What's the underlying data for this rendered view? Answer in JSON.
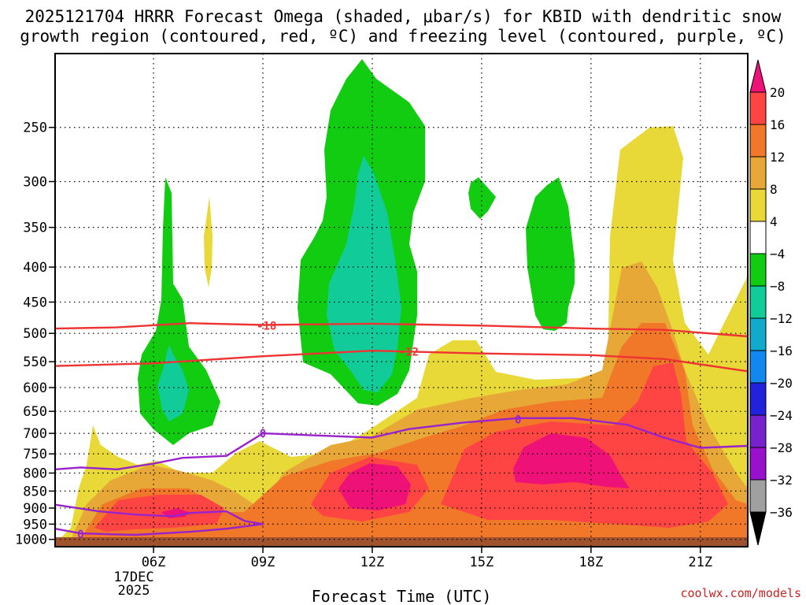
{
  "chart_data": {
    "type": "heatmap",
    "title_line1": "2025121704 HRRR Forecast Omega (shaded, μbar/s) for KBID with dendritic snow",
    "title_line2": "growth region (contoured, red, ºC) and freezing level (contoured, purple, ºC)",
    "xlabel": "Forecast Time (UTC)",
    "ylabel": "",
    "x_range_hours": [
      3.3,
      22.3
    ],
    "y_range_hpa": [
      1025,
      195
    ],
    "x_ticks": [
      {
        "hour": 6,
        "label": "06Z"
      },
      {
        "hour": 9,
        "label": "09Z"
      },
      {
        "hour": 12,
        "label": "12Z"
      },
      {
        "hour": 15,
        "label": "15Z"
      },
      {
        "hour": 18,
        "label": "18Z"
      },
      {
        "hour": 21,
        "label": "21Z"
      }
    ],
    "date_label": [
      "17DEC",
      "2025"
    ],
    "y_ticks": [
      250,
      300,
      350,
      400,
      450,
      500,
      550,
      600,
      650,
      700,
      750,
      800,
      850,
      900,
      950,
      1000
    ],
    "colorbar": {
      "labels": [
        "20",
        "16",
        "12",
        "8",
        "4",
        "−4",
        "−8",
        "−12",
        "−16",
        "−20",
        "−24",
        "−28",
        "−32",
        "−36"
      ],
      "colors": [
        "#ee1177",
        "#ff4444",
        "#f07828",
        "#e8a838",
        "#e8d838",
        "#ffffff",
        "#11cc11",
        "#11cc99",
        "#11aacc",
        "#1188ee",
        "#2222dd",
        "#7722cc",
        "#9911cc",
        "#a0a0a0",
        "#000000"
      ]
    },
    "shaded_regions": [
      {
        "name": "green",
        "value_range": [
          -8,
          -4
        ],
        "color": "#11cc11"
      },
      {
        "name": "teal",
        "value_range": [
          -12,
          -8
        ],
        "color": "#11cc99"
      },
      {
        "name": "yellow",
        "value_range": [
          4,
          8
        ],
        "color": "#e8d838"
      },
      {
        "name": "lightorange",
        "value_range": [
          8,
          12
        ],
        "color": "#e8a838"
      },
      {
        "name": "orange",
        "value_range": [
          12,
          16
        ],
        "color": "#f07828"
      },
      {
        "name": "red",
        "value_range": [
          16,
          20
        ],
        "color": "#ff4444"
      },
      {
        "name": "magenta",
        "value_range": [
          20,
          24
        ],
        "color": "#ee1177"
      }
    ],
    "contours": [
      {
        "name": "-18",
        "color": "#ee3333",
        "label": "-18",
        "points": [
          [
            3.3,
            492
          ],
          [
            5,
            490
          ],
          [
            7,
            483
          ],
          [
            9,
            486
          ],
          [
            12,
            484
          ],
          [
            15,
            487
          ],
          [
            18,
            492
          ],
          [
            20,
            494
          ],
          [
            22.3,
            505
          ]
        ]
      },
      {
        "name": "-12",
        "color": "#ee3333",
        "label": "-12",
        "points": [
          [
            3.3,
            558
          ],
          [
            6,
            553
          ],
          [
            9,
            540
          ],
          [
            12,
            530
          ],
          [
            15,
            535
          ],
          [
            18,
            538
          ],
          [
            20,
            545
          ],
          [
            22.3,
            568
          ]
        ]
      },
      {
        "name": "0-upper",
        "color": "#9922cc",
        "label": "0",
        "points": [
          [
            3.3,
            790
          ],
          [
            4,
            785
          ],
          [
            5,
            790
          ],
          [
            6,
            775
          ],
          [
            6.8,
            760
          ],
          [
            8,
            755
          ],
          [
            9,
            700
          ],
          [
            10.5,
            705
          ],
          [
            12,
            710
          ],
          [
            13,
            690
          ],
          [
            14.5,
            675
          ],
          [
            16,
            665
          ],
          [
            17.5,
            665
          ],
          [
            19,
            680
          ],
          [
            20,
            710
          ],
          [
            21,
            735
          ],
          [
            22.3,
            730
          ]
        ]
      },
      {
        "name": "0-lower",
        "color": "#9922cc",
        "label": "0",
        "points": [
          [
            3.3,
            965
          ],
          [
            4,
            980
          ],
          [
            5.5,
            985
          ],
          [
            7,
            975
          ],
          [
            8,
            965
          ],
          [
            9,
            950
          ],
          [
            8.5,
            940
          ],
          [
            8,
            910
          ],
          [
            7,
            915
          ],
          [
            6.5,
            925
          ],
          [
            5.5,
            920
          ],
          [
            4.5,
            910
          ],
          [
            3.3,
            890
          ]
        ]
      }
    ],
    "contour_labels": [
      {
        "text": "-18",
        "hour": 9.1,
        "hpa": 487,
        "color": "#ee3333"
      },
      {
        "text": "-12",
        "hour": 13.0,
        "hpa": 532,
        "color": "#ee3333"
      },
      {
        "text": "0",
        "hour": 9.0,
        "hpa": 700,
        "color": "#9922cc"
      },
      {
        "text": "0",
        "hour": 16.0,
        "hpa": 668,
        "color": "#9922cc"
      },
      {
        "text": "0",
        "hour": 4.0,
        "hpa": 983,
        "color": "#9922cc"
      }
    ],
    "terrain_color": "#a0522d"
  },
  "footer": {
    "credit": "coolwx.com/models"
  }
}
